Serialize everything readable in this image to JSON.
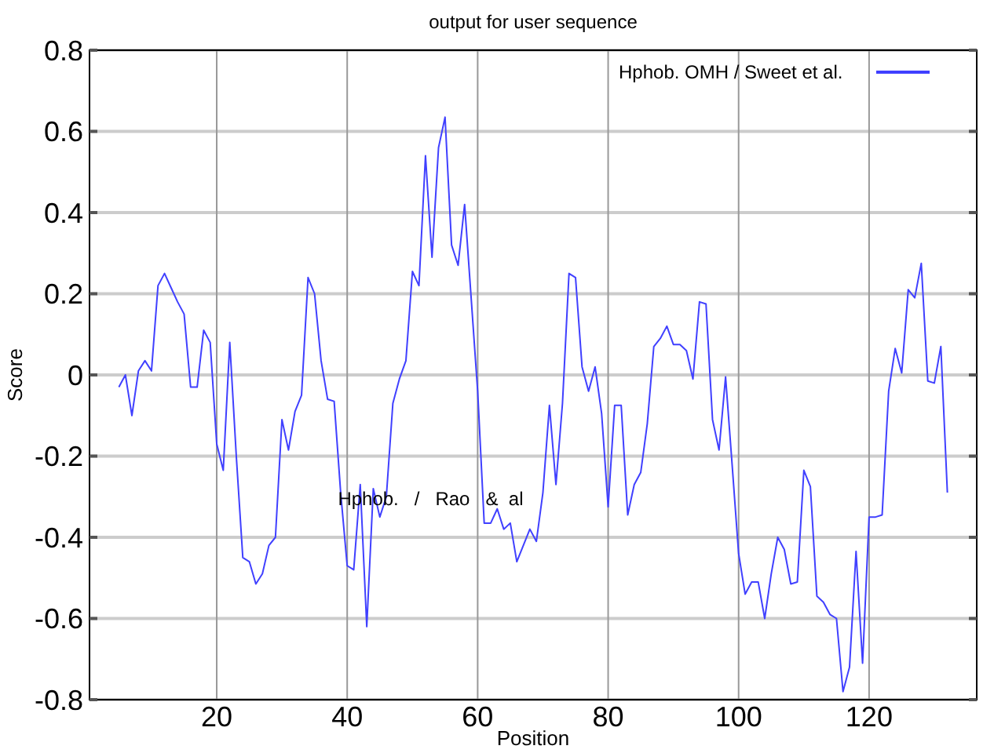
{
  "chart_data": {
    "type": "line",
    "title": "output for user sequence",
    "xlabel": "Position",
    "ylabel": "Score",
    "x": [
      5,
      6,
      7,
      8,
      9,
      10,
      11,
      12,
      13,
      14,
      15,
      16,
      17,
      18,
      19,
      20,
      21,
      22,
      23,
      24,
      25,
      26,
      27,
      28,
      29,
      30,
      31,
      32,
      33,
      34,
      35,
      36,
      37,
      38,
      39,
      40,
      41,
      42,
      43,
      44,
      45,
      46,
      47,
      48,
      49,
      50,
      51,
      52,
      53,
      54,
      55,
      56,
      57,
      58,
      59,
      60,
      61,
      62,
      63,
      64,
      65,
      66,
      67,
      68,
      69,
      70,
      71,
      72,
      73,
      74,
      75,
      76,
      77,
      78,
      79,
      80,
      81,
      82,
      83,
      84,
      85,
      86,
      87,
      88,
      89,
      90,
      91,
      92,
      93,
      94,
      95,
      96,
      97,
      98,
      99,
      100,
      101,
      102,
      103,
      104,
      105,
      106,
      107,
      108,
      109,
      110,
      111,
      112,
      113,
      114,
      115,
      116,
      117,
      118,
      119,
      120,
      121,
      122,
      123,
      124,
      125,
      126,
      127,
      128,
      129,
      130,
      131,
      132
    ],
    "series": [
      {
        "name": "Hphob. OMH / Sweet et al.",
        "color": "#4040ff",
        "values": [
          -0.03,
          0.0,
          -0.1,
          0.01,
          0.035,
          0.01,
          0.22,
          0.25,
          0.215,
          0.18,
          0.15,
          -0.03,
          -0.03,
          0.11,
          0.08,
          -0.17,
          -0.235,
          0.08,
          -0.2,
          -0.45,
          -0.46,
          -0.515,
          -0.49,
          -0.42,
          -0.4,
          -0.11,
          -0.185,
          -0.09,
          -0.05,
          0.24,
          0.2,
          0.035,
          -0.06,
          -0.065,
          -0.29,
          -0.47,
          -0.48,
          -0.27,
          -0.62,
          -0.28,
          -0.35,
          -0.3,
          -0.07,
          -0.01,
          0.035,
          0.255,
          0.22,
          0.54,
          0.29,
          0.56,
          0.635,
          0.32,
          0.27,
          0.42,
          0.19,
          -0.04,
          -0.365,
          -0.365,
          -0.33,
          -0.38,
          -0.365,
          -0.46,
          -0.42,
          -0.38,
          -0.41,
          -0.29,
          -0.075,
          -0.27,
          -0.07,
          0.25,
          0.24,
          0.02,
          -0.04,
          0.02,
          -0.095,
          -0.325,
          -0.075,
          -0.075,
          -0.345,
          -0.27,
          -0.24,
          -0.12,
          0.07,
          0.09,
          0.12,
          0.075,
          0.075,
          0.06,
          -0.01,
          0.18,
          0.175,
          -0.11,
          -0.185,
          -0.005,
          -0.22,
          -0.44,
          -0.54,
          -0.51,
          -0.51,
          -0.6,
          -0.49,
          -0.4,
          -0.43,
          -0.515,
          -0.51,
          -0.235,
          -0.275,
          -0.545,
          -0.56,
          -0.59,
          -0.6,
          -0.78,
          -0.72,
          -0.435,
          -0.71,
          -0.35,
          -0.35,
          -0.345,
          -0.04,
          0.065,
          0.005,
          0.21,
          0.19,
          0.275,
          -0.015,
          -0.02,
          0.07,
          -0.29
        ]
      }
    ],
    "annotations": [
      "Hphob.   /   Rao   &  al"
    ],
    "xlim": [
      0.5,
      136.5
    ],
    "xticks": [
      20,
      40,
      60,
      80,
      100,
      120
    ],
    "ylim": [
      -0.8,
      0.8
    ],
    "yticks": [
      -0.8,
      -0.6,
      -0.4,
      -0.2,
      0,
      0.2,
      0.4,
      0.6,
      0.8
    ],
    "grid": true,
    "legend": "top right",
    "marker": "none",
    "line_style": "solid"
  }
}
